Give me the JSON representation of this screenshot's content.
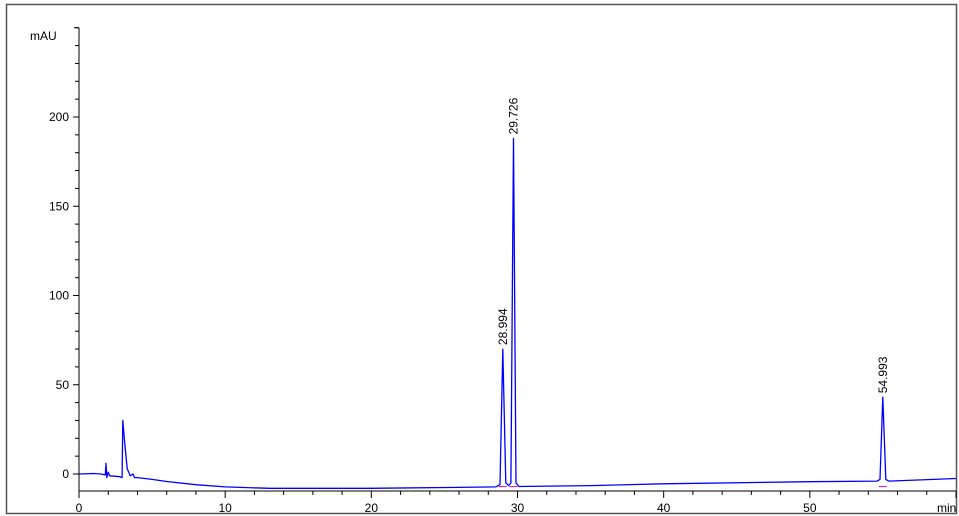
{
  "chart_data": {
    "type": "line",
    "title": "",
    "xlabel": "min",
    "ylabel": "mAU",
    "xlim": [
      0,
      60
    ],
    "ylim": [
      -9.5,
      250
    ],
    "x_ticks": [
      0,
      10,
      20,
      30,
      40,
      50
    ],
    "y_ticks": [
      0,
      50,
      100,
      150,
      200
    ],
    "x_minor_step": 2,
    "y_minor_step": 10,
    "grid": false,
    "colors": {
      "trace": "#0000ff",
      "baseline_marker": "#ff00ff",
      "frame": "#555555"
    },
    "series": [
      {
        "points": [
          [
            0,
            0
          ],
          [
            1,
            0.3
          ],
          [
            1.5,
            0
          ],
          [
            1.8,
            -0.5
          ],
          [
            1.85,
            6
          ],
          [
            1.9,
            -2
          ],
          [
            2.0,
            1
          ],
          [
            2.1,
            -1
          ],
          [
            2.8,
            -1.5
          ],
          [
            2.95,
            -2
          ],
          [
            3.0,
            30
          ],
          [
            3.1,
            20
          ],
          [
            3.3,
            3
          ],
          [
            3.5,
            -1
          ],
          [
            3.7,
            0
          ],
          [
            3.8,
            -2
          ],
          [
            4.0,
            -2
          ],
          [
            5,
            -3
          ],
          [
            6,
            -4.2
          ],
          [
            8,
            -6
          ],
          [
            10,
            -7.2
          ],
          [
            13,
            -8
          ],
          [
            20,
            -8
          ],
          [
            26,
            -7.5
          ],
          [
            28.5,
            -7.2
          ],
          [
            28.8,
            -6
          ],
          [
            28.994,
            70
          ],
          [
            29.2,
            -5
          ],
          [
            29.4,
            -6.5
          ],
          [
            29.55,
            -5
          ],
          [
            29.726,
            188
          ],
          [
            29.9,
            -5
          ],
          [
            30.1,
            -7
          ],
          [
            35,
            -6.5
          ],
          [
            40,
            -5.5
          ],
          [
            50,
            -4.3
          ],
          [
            54.6,
            -4
          ],
          [
            54.8,
            -3
          ],
          [
            54.993,
            43
          ],
          [
            55.2,
            -3
          ],
          [
            55.4,
            -4
          ],
          [
            60,
            -2.5
          ]
        ]
      }
    ],
    "peaks": [
      {
        "label": "28.994",
        "rt": 28.994,
        "height": 70
      },
      {
        "label": "29.726",
        "rt": 29.726,
        "height": 188
      },
      {
        "label": "54.993",
        "rt": 54.993,
        "height": 43
      }
    ]
  }
}
